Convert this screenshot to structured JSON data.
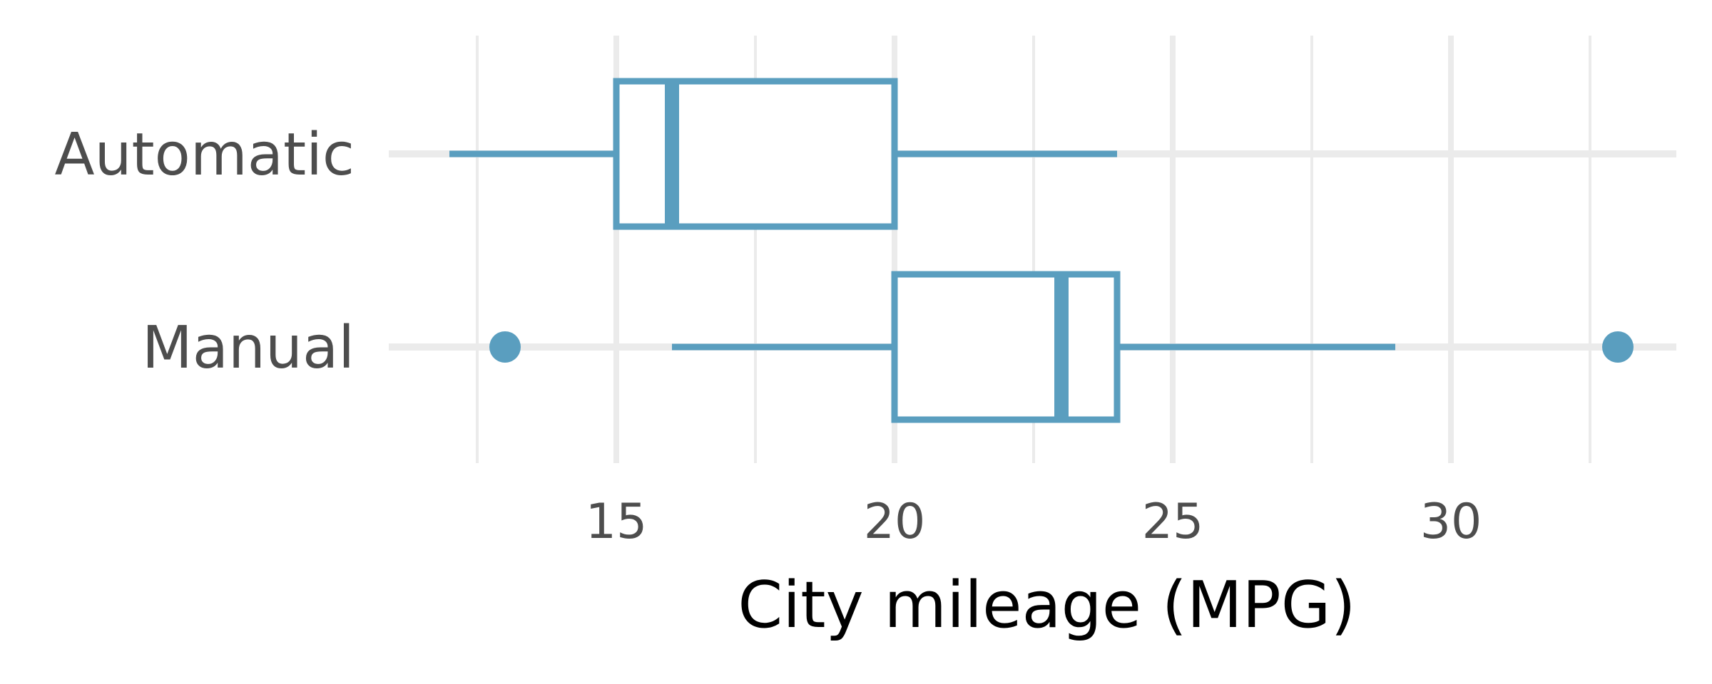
{
  "chart_data": {
    "type": "boxplot",
    "orientation": "horizontal",
    "title": "",
    "xlabel": "City mileage (MPG)",
    "ylabel": "",
    "xlim": [
      11,
      34
    ],
    "xticks": [
      15,
      20,
      25,
      30
    ],
    "x_minor_gridlines": [
      12.5,
      17.5,
      22.5,
      27.5,
      32.5
    ],
    "grid": true,
    "legend": "none",
    "categories": [
      "Automatic",
      "Manual"
    ],
    "series": [
      {
        "whisker_low": 12,
        "q1": 15,
        "median": 16,
        "q3": 20,
        "whisker_high": 24,
        "outliers": []
      },
      {
        "whisker_low": 16,
        "q1": 20,
        "median": 23,
        "q3": 24,
        "whisker_high": 29,
        "outliers": [
          13,
          33
        ]
      }
    ],
    "colors": {
      "box": "#5a9ebf",
      "grid": "#ebebeb",
      "background": "#ffffff"
    }
  }
}
